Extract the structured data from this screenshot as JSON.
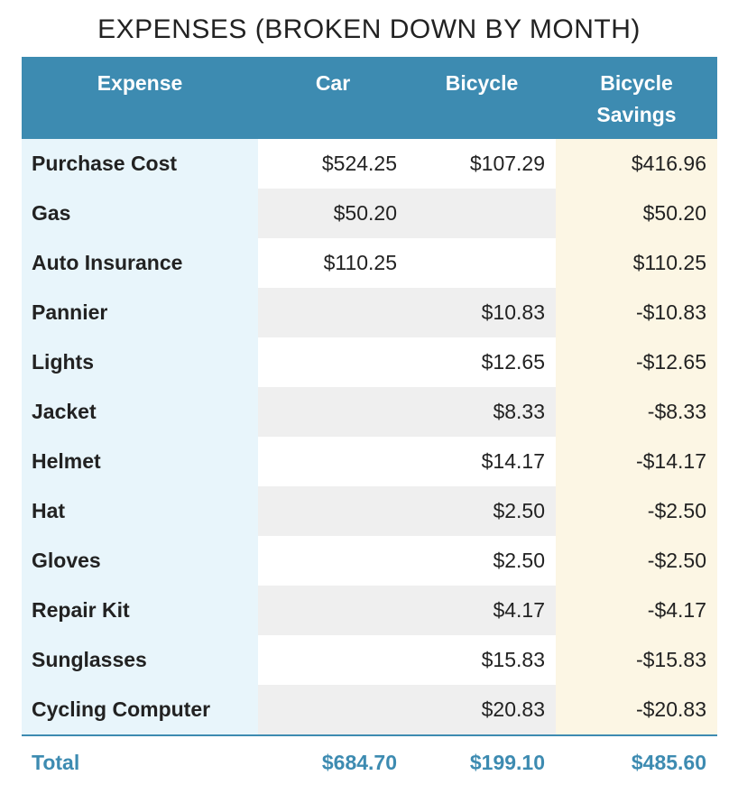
{
  "chart_data": {
    "type": "table",
    "title": "EXPENSES (BROKEN DOWN BY MONTH)",
    "columns": [
      "Expense",
      "Car",
      "Bicycle",
      "Bicycle Savings"
    ],
    "rows": [
      [
        "Purchase Cost",
        "$524.25",
        "$107.29",
        "$416.96"
      ],
      [
        "Gas",
        "$50.20",
        "",
        "$50.20"
      ],
      [
        "Auto Insurance",
        "$110.25",
        "",
        "$110.25"
      ],
      [
        "Pannier",
        "",
        "$10.83",
        "-$10.83"
      ],
      [
        "Lights",
        "",
        "$12.65",
        "-$12.65"
      ],
      [
        "Jacket",
        "",
        "$8.33",
        "-$8.33"
      ],
      [
        "Helmet",
        "",
        "$14.17",
        "-$14.17"
      ],
      [
        "Hat",
        "",
        "$2.50",
        "-$2.50"
      ],
      [
        "Gloves",
        "",
        "$2.50",
        "-$2.50"
      ],
      [
        "Repair Kit",
        "",
        "$4.17",
        "-$4.17"
      ],
      [
        "Sunglasses",
        "",
        "$15.83",
        "-$15.83"
      ],
      [
        "Cycling Computer",
        "",
        "$20.83",
        "-$20.83"
      ]
    ],
    "total": [
      "Total",
      "$684.70",
      "$199.10",
      "$485.60"
    ]
  },
  "colors": {
    "header_bg": "#3d8bb1",
    "label_col_bg": "#e8f5fb",
    "savings_col_bg": "#fcf6e4",
    "stripe_bg": "#efefef",
    "total_text": "#3d8bb1"
  }
}
